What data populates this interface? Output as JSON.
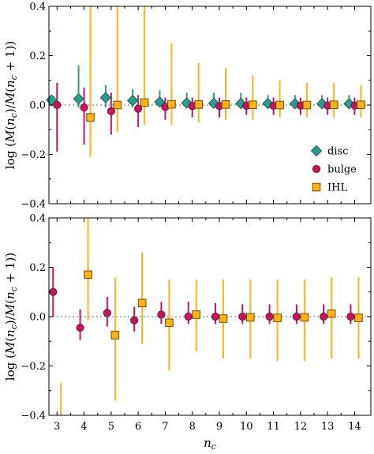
{
  "figure": {
    "xlabel_base": "n",
    "xlabel_sub": "c",
    "ylabel_parts": [
      "log (",
      "M",
      "(",
      "n",
      "c",
      ")/",
      "M",
      "(",
      "n",
      "c",
      " + 1))"
    ],
    "marker_names": {
      "disc": "diamond",
      "bulge": "circle",
      "IHL": "square"
    }
  },
  "colors": {
    "disc": "#2a9d8f",
    "disc_edge": "#1d5e57",
    "bulge": "#c2185b",
    "bulge_edge": "#7a1038",
    "IHL": "#ffb319",
    "IHL_edge": "#6b4a00",
    "zero_line": "#888888"
  },
  "chart_data": [
    {
      "type": "scatter",
      "panel": "top",
      "xlabel": "",
      "ylabel": "log (M(n_c)/M(n_c + 1))",
      "xlim": [
        2.7,
        14.6
      ],
      "ylim": [
        -0.4,
        0.4
      ],
      "xticks": [
        3,
        4,
        5,
        6,
        7,
        8,
        9,
        10,
        11,
        12,
        13,
        14
      ],
      "yticks": [
        -0.4,
        -0.2,
        0.0,
        0.2,
        0.4
      ],
      "ytick_labels": [
        "−0.4",
        "−0.2",
        "0.0",
        "0.2",
        "0.4"
      ],
      "grid": false,
      "zero_line": true,
      "legend": {
        "position": "center-right",
        "entries": [
          "disc",
          "bulge",
          "IHL"
        ]
      },
      "series": [
        {
          "name": "disc",
          "marker": "diamond",
          "x": [
            3,
            4,
            5,
            6,
            7,
            8,
            9,
            10,
            11,
            12,
            13,
            14
          ],
          "y": [
            0.02,
            0.025,
            0.03,
            0.018,
            0.012,
            0.008,
            0.007,
            0.006,
            0.006,
            0.005,
            0.005,
            0.005
          ],
          "err_low": [
            -0.005,
            -0.01,
            -0.01,
            -0.01,
            -0.01,
            -0.01,
            -0.01,
            -0.015,
            -0.01,
            -0.01,
            -0.01,
            -0.01
          ],
          "err_high": [
            0.04,
            0.16,
            0.08,
            0.065,
            0.06,
            0.05,
            0.05,
            0.05,
            0.04,
            0.04,
            0.04,
            0.04
          ]
        },
        {
          "name": "bulge",
          "marker": "circle",
          "x": [
            3,
            4,
            5,
            6,
            7,
            8,
            9,
            10,
            11,
            12,
            13,
            14
          ],
          "y": [
            0.0,
            -0.01,
            -0.025,
            -0.015,
            -0.008,
            -0.004,
            -0.004,
            -0.003,
            -0.003,
            -0.002,
            -0.002,
            -0.002
          ],
          "err_low": [
            -0.19,
            -0.16,
            -0.12,
            -0.09,
            -0.06,
            -0.05,
            -0.05,
            -0.04,
            -0.04,
            -0.04,
            -0.04,
            -0.04
          ],
          "err_high": [
            0.09,
            0.07,
            0.05,
            0.04,
            0.03,
            0.03,
            0.03,
            0.03,
            0.03,
            0.03,
            0.03,
            0.03
          ]
        },
        {
          "name": "IHL",
          "marker": "square",
          "x": [
            3,
            4,
            5,
            6,
            7,
            8,
            9,
            10,
            11,
            12,
            13,
            14
          ],
          "y": [
            null,
            -0.05,
            0.0,
            0.01,
            0.003,
            0.002,
            0.002,
            0.001,
            0.0,
            0.0,
            0.001,
            0.001
          ],
          "err_low": [
            null,
            -0.21,
            -0.11,
            -0.08,
            -0.08,
            -0.07,
            -0.06,
            -0.06,
            -0.05,
            -0.05,
            -0.05,
            -0.05
          ],
          "err_high": [
            null,
            0.4,
            0.4,
            0.4,
            0.25,
            0.17,
            0.15,
            0.12,
            0.1,
            0.09,
            0.09,
            0.08
          ]
        }
      ]
    },
    {
      "type": "scatter",
      "panel": "bottom",
      "xlabel": "n_c",
      "ylabel": "log (M(n_c)/M(n_c + 1))",
      "xlim": [
        2.7,
        14.6
      ],
      "ylim": [
        -0.4,
        0.4
      ],
      "xticks": [
        3,
        4,
        5,
        6,
        7,
        8,
        9,
        10,
        11,
        12,
        13,
        14
      ],
      "yticks": [
        -0.4,
        -0.2,
        0.0,
        0.2,
        0.4
      ],
      "ytick_labels": [
        "−0.4",
        "−0.2",
        "0.0",
        "0.2",
        "0.4"
      ],
      "grid": false,
      "zero_line": true,
      "series": [
        {
          "name": "bulge",
          "marker": "circle",
          "x": [
            3,
            4,
            5,
            6,
            7,
            8,
            9,
            10,
            11,
            12,
            13,
            14
          ],
          "y": [
            0.1,
            -0.045,
            0.015,
            -0.015,
            0.008,
            0.0,
            0.0,
            0.0,
            0.0,
            0.0,
            0.0,
            0.0
          ],
          "err_low": [
            0.0,
            -0.095,
            -0.04,
            -0.06,
            -0.03,
            -0.03,
            -0.03,
            -0.03,
            -0.03,
            -0.03,
            -0.03,
            -0.03
          ],
          "err_high": [
            0.2,
            0.03,
            0.08,
            0.04,
            0.06,
            0.06,
            0.055,
            0.05,
            0.05,
            0.05,
            0.05,
            0.05
          ]
        },
        {
          "name": "IHL",
          "marker": "square",
          "x": [
            3,
            4,
            5,
            6,
            7,
            8,
            9,
            10,
            11,
            12,
            13,
            14
          ],
          "y": [
            null,
            0.17,
            -0.075,
            0.055,
            -0.025,
            0.008,
            -0.008,
            -0.003,
            -0.005,
            -0.003,
            0.012,
            -0.005
          ],
          "err_low": [
            -0.4,
            -0.015,
            -0.34,
            -0.11,
            -0.22,
            -0.14,
            -0.17,
            -0.17,
            -0.18,
            -0.18,
            -0.17,
            -0.17
          ],
          "err_high": [
            -0.27,
            0.4,
            0.16,
            0.26,
            0.15,
            0.15,
            0.15,
            0.15,
            0.15,
            0.15,
            0.16,
            0.16
          ]
        }
      ]
    }
  ]
}
